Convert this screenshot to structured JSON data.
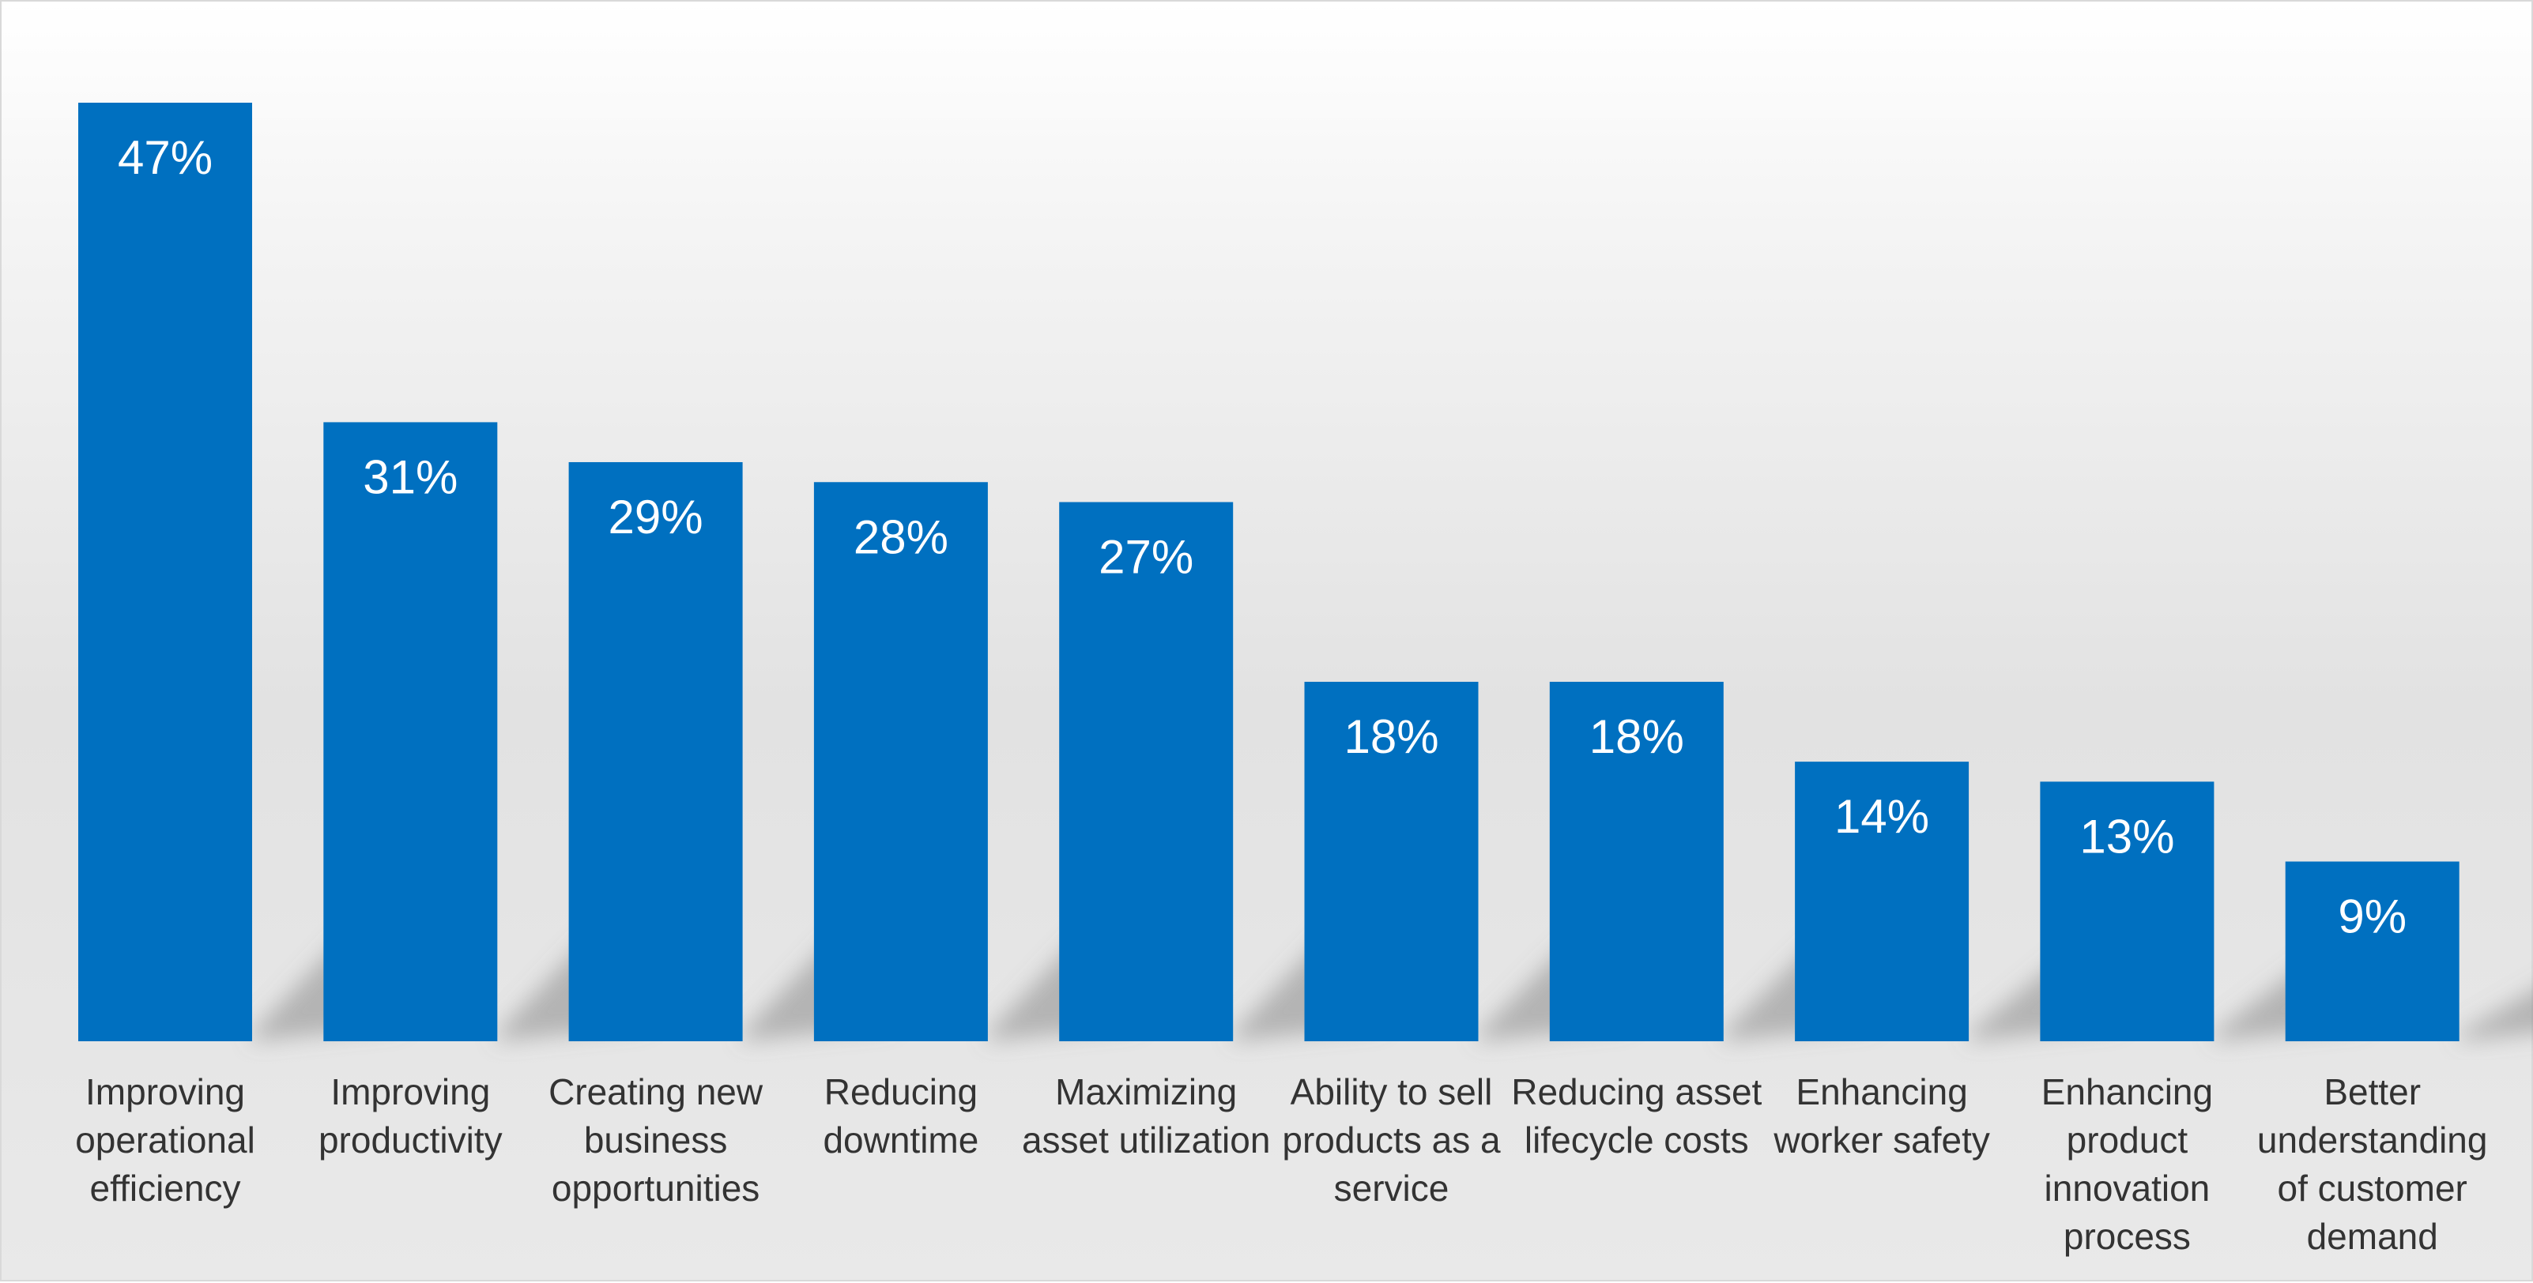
{
  "chart_data": {
    "type": "bar",
    "categories": [
      "Improving operational efficiency",
      "Improving productivity",
      "Creating new business opportunities",
      "Reducing downtime",
      "Maximizing asset utilization",
      "Ability to sell products as a service",
      "Reducing asset lifecycle costs",
      "Enhancing worker safety",
      "Enhancing product innovation process",
      "Better understanding of customer demand"
    ],
    "category_lines": [
      [
        "Improving",
        "operational",
        "efficiency"
      ],
      [
        "Improving",
        "productivity"
      ],
      [
        "Creating new",
        "business",
        "opportunities"
      ],
      [
        "Reducing",
        "downtime"
      ],
      [
        "Maximizing",
        "asset utilization"
      ],
      [
        "Ability to sell",
        "products as a",
        "service"
      ],
      [
        "Reducing asset",
        "lifecycle costs"
      ],
      [
        "Enhancing",
        "worker safety"
      ],
      [
        "Enhancing",
        "product",
        "innovation",
        "process"
      ],
      [
        "Better",
        "understanding",
        "of customer",
        "demand"
      ]
    ],
    "values": [
      47,
      31,
      29,
      28,
      27,
      18,
      18,
      14,
      13,
      9
    ],
    "data_labels": [
      "47%",
      "31%",
      "29%",
      "28%",
      "27%",
      "18%",
      "18%",
      "14%",
      "13%",
      "9%"
    ],
    "title": "",
    "xlabel": "",
    "ylabel": "",
    "ylim": [
      0,
      47
    ],
    "grid": false,
    "legend": "none",
    "colors": {
      "bar": "#0070C0",
      "bar_label": "#FFFFFF",
      "category_label": "#333333"
    }
  }
}
